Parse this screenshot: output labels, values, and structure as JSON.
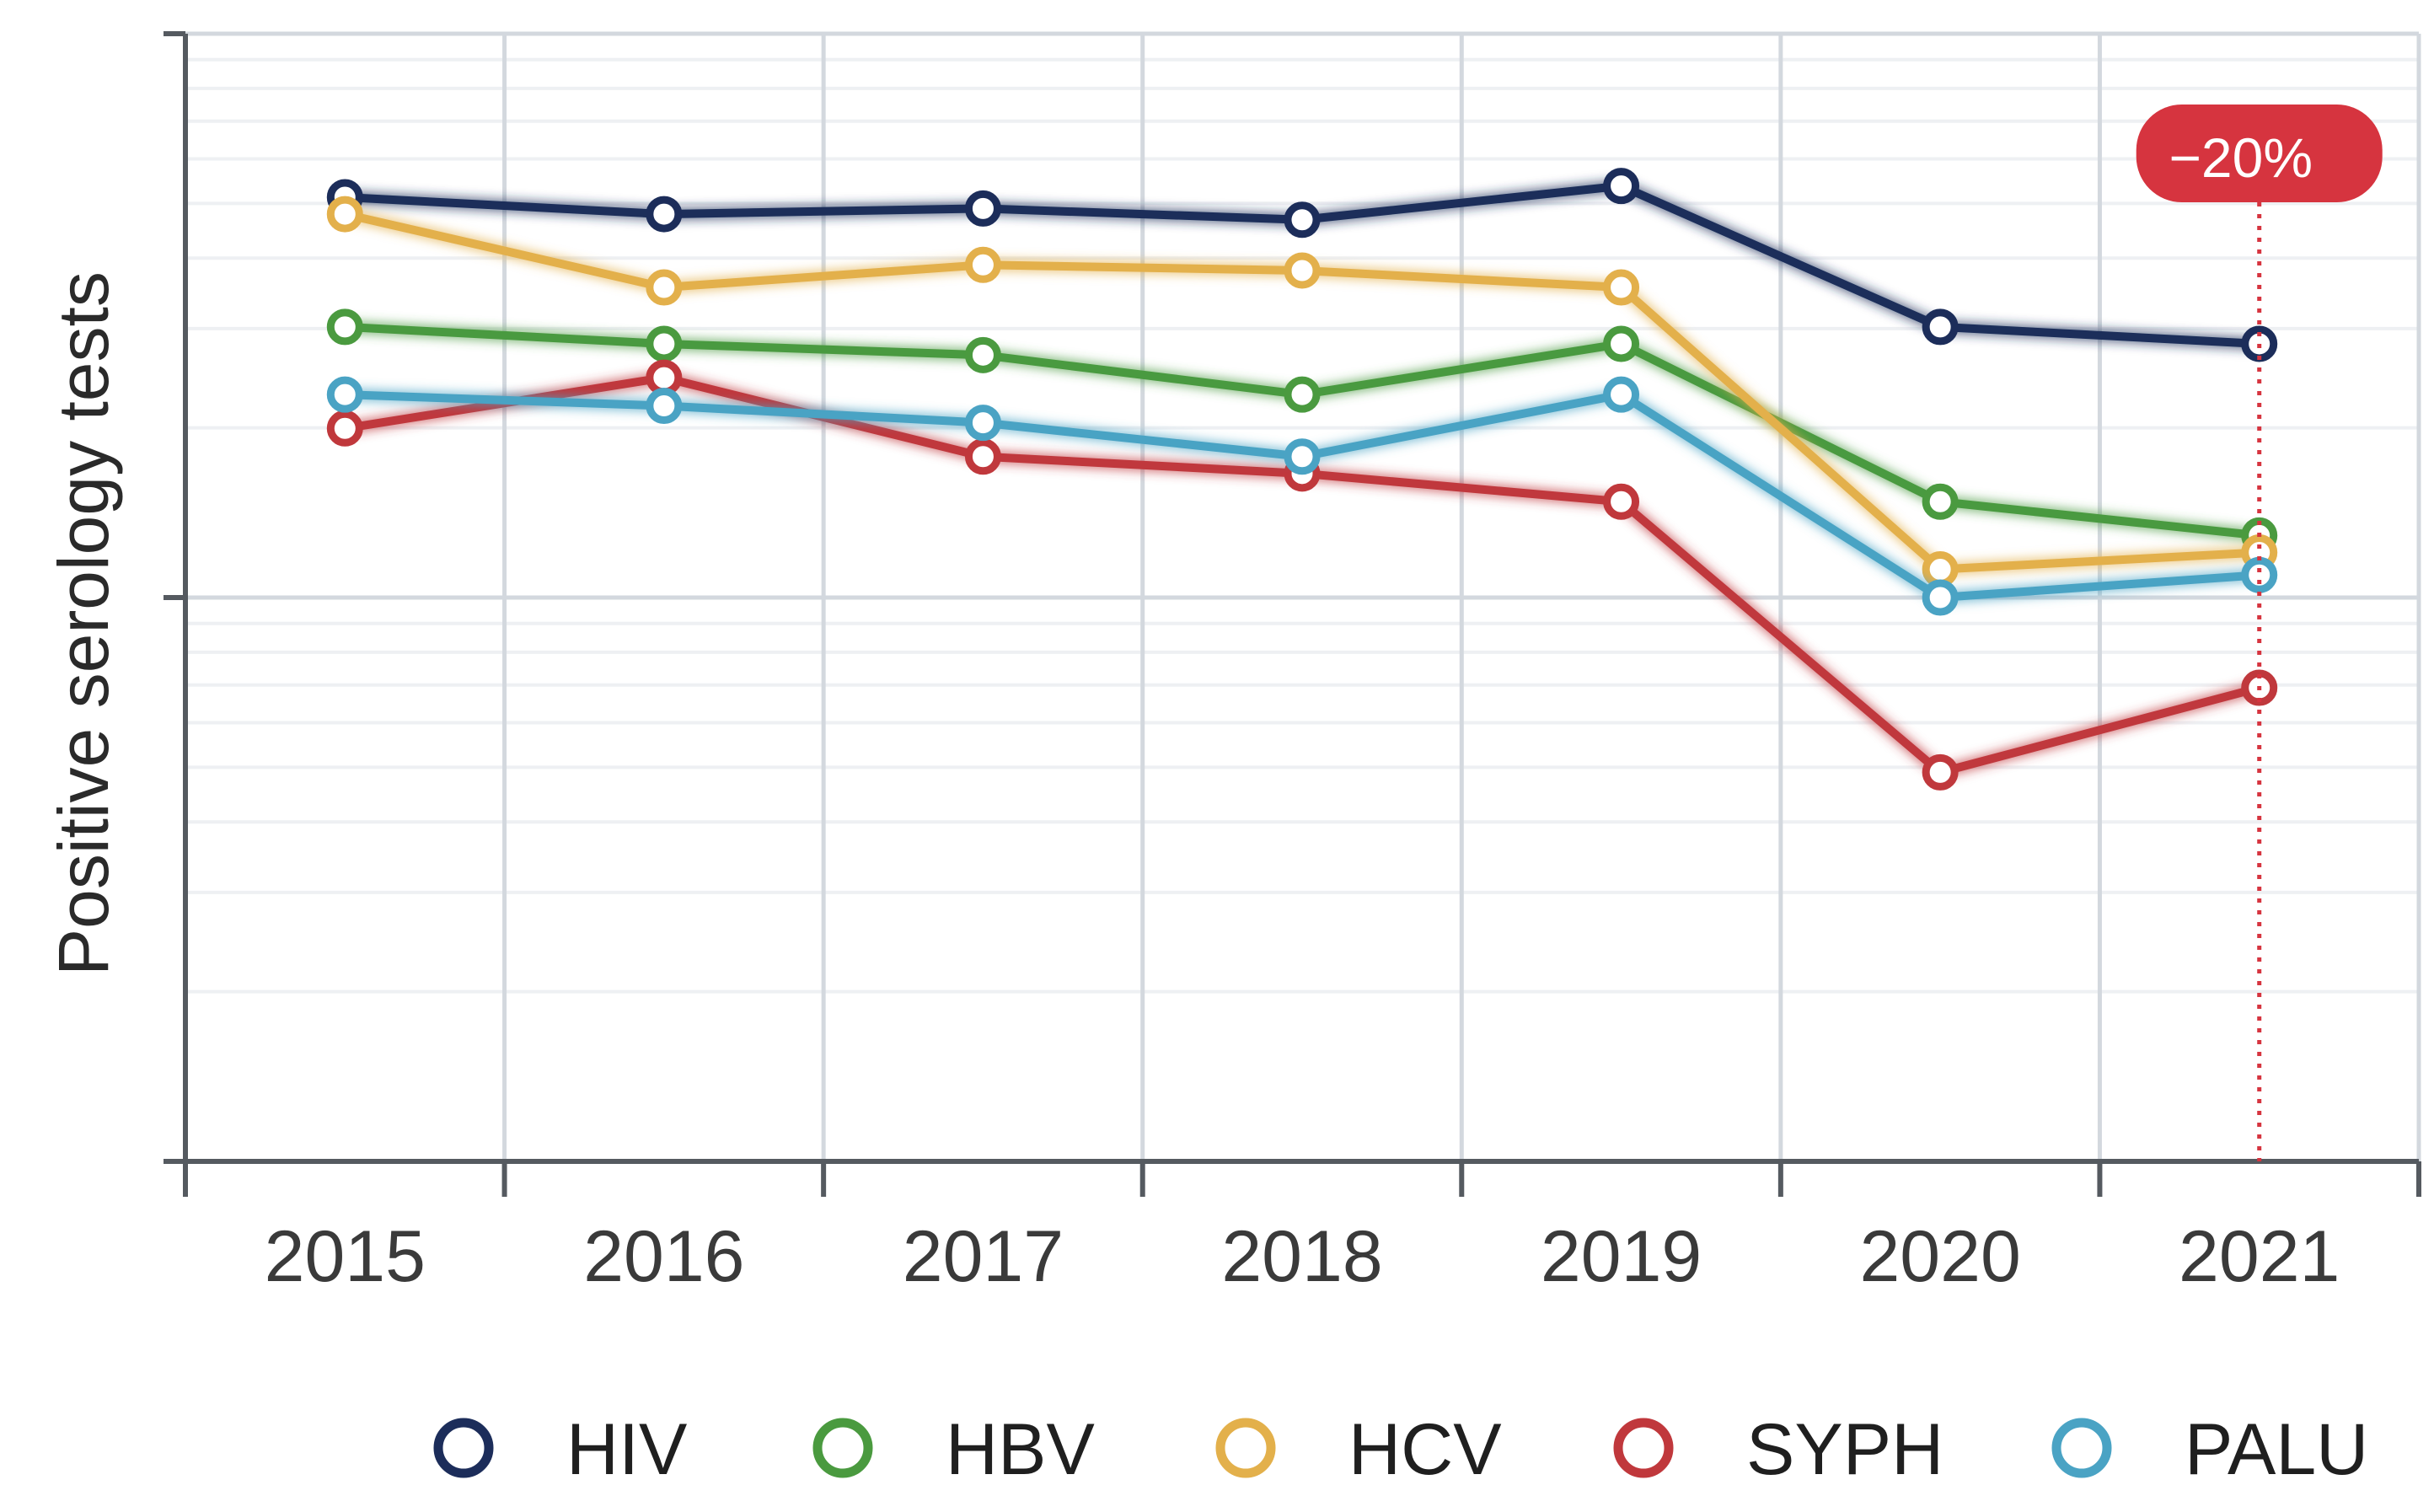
{
  "chart_data": {
    "type": "line",
    "title": "",
    "xlabel": "",
    "ylabel": "Positive serology tests",
    "x": [
      "2015",
      "2016",
      "2017",
      "2018",
      "2019",
      "2020",
      "2021"
    ],
    "ylim": [
      0,
      100
    ],
    "grid": true,
    "legend_position": "bottom",
    "series": [
      {
        "name": "HIV",
        "color": "#1c2d5a",
        "values": [
          85.5,
          84.0,
          84.5,
          83.5,
          86.5,
          74.0,
          72.5
        ]
      },
      {
        "name": "HBV",
        "color": "#4a9a3f",
        "values": [
          74.0,
          72.5,
          71.5,
          68.0,
          72.5,
          58.5,
          55.5
        ]
      },
      {
        "name": "HCV",
        "color": "#e3b04b",
        "values": [
          84.0,
          77.5,
          79.5,
          79.0,
          77.5,
          52.5,
          54.0
        ]
      },
      {
        "name": "SYPH",
        "color": "#c0383c",
        "values": [
          65.0,
          69.5,
          62.5,
          61.0,
          58.5,
          34.5,
          42.0
        ]
      },
      {
        "name": "PALU",
        "color": "#4aa3c4",
        "values": [
          68.0,
          67.0,
          65.5,
          62.5,
          68.0,
          50.0,
          52.0
        ]
      }
    ],
    "annotations": [
      {
        "label": "−20%",
        "x": "2021",
        "color": "#d6343f"
      }
    ]
  }
}
